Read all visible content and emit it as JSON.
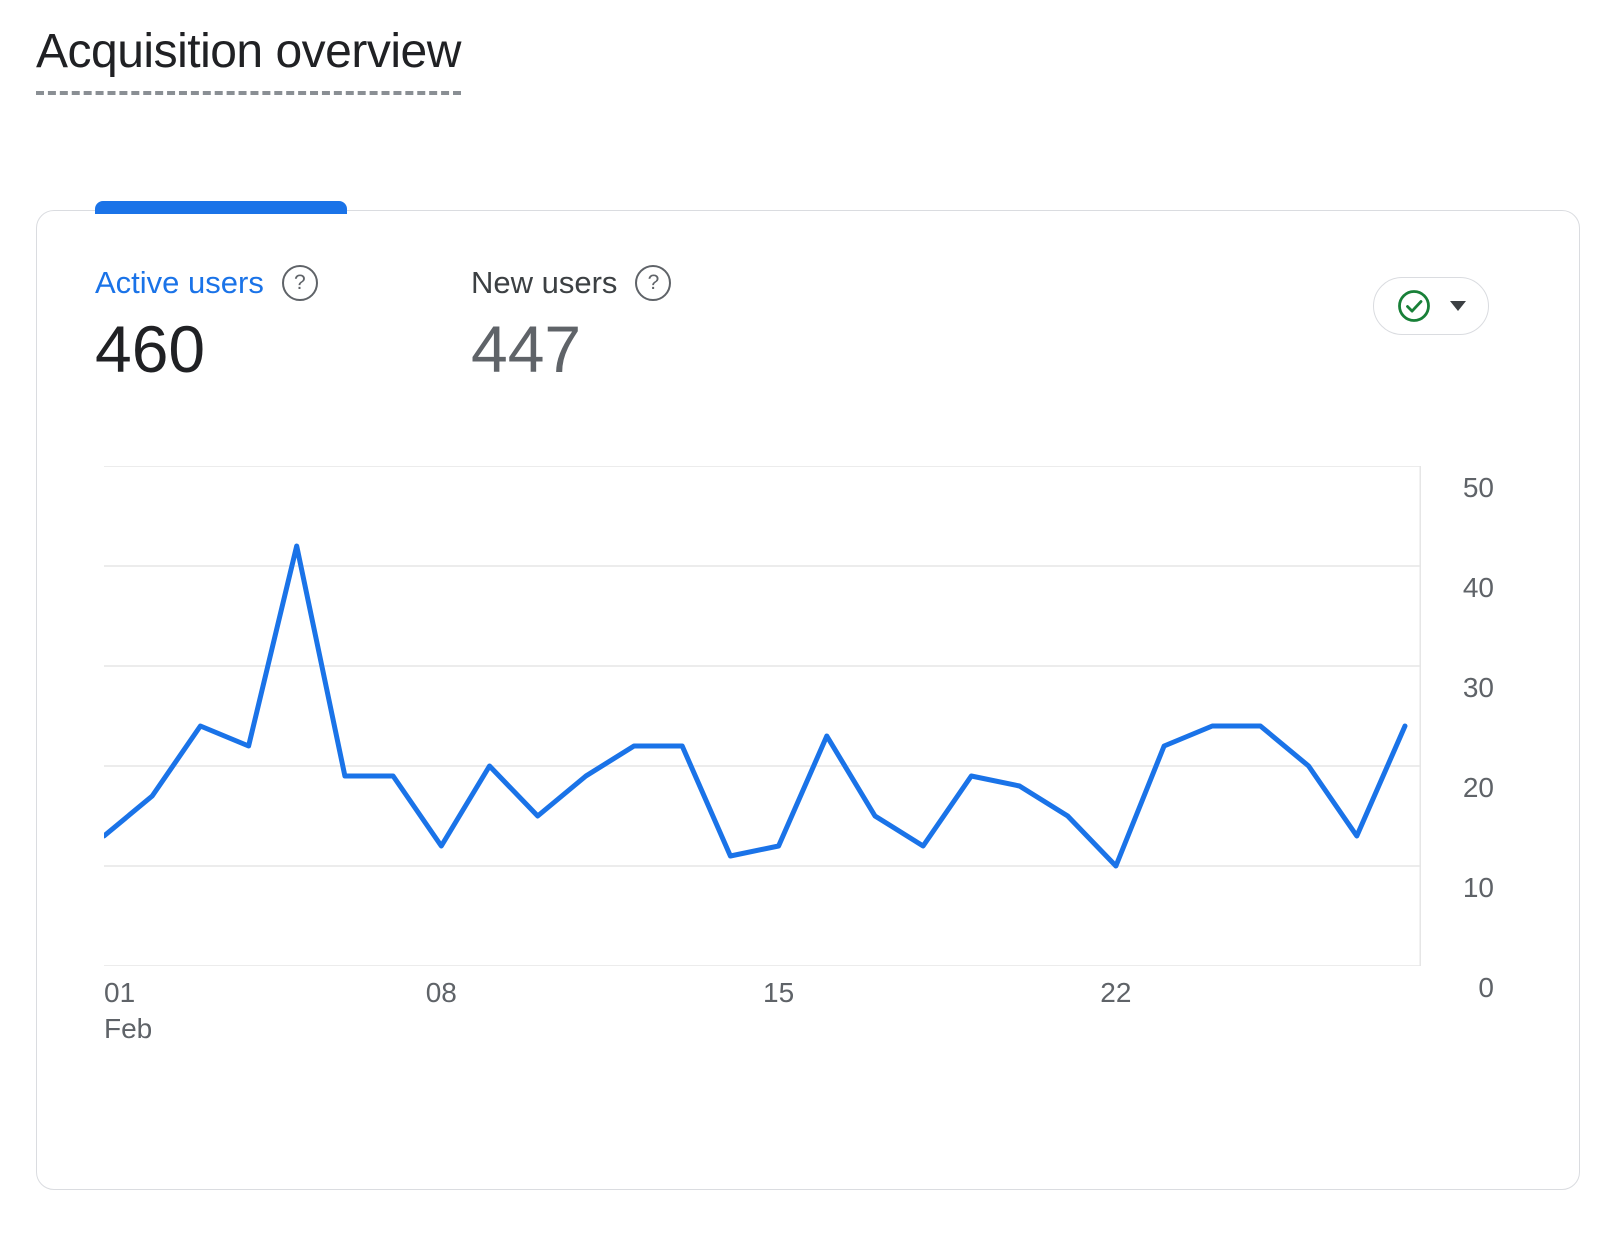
{
  "page": {
    "title": "Acquisition overview"
  },
  "card": {
    "metrics": [
      {
        "label": "Active users",
        "value": "460",
        "selected": true
      },
      {
        "label": "New users",
        "value": "447",
        "selected": false
      }
    ],
    "help_icon_glyph": "?",
    "quality_button": {
      "icon": "check-circle",
      "status_color": "#188038"
    }
  },
  "chart_data": {
    "type": "line",
    "x": [
      1,
      2,
      3,
      4,
      5,
      6,
      7,
      8,
      9,
      10,
      11,
      12,
      13,
      14,
      15,
      16,
      17,
      18,
      19,
      20,
      21,
      22,
      23,
      24,
      25,
      26,
      27,
      28
    ],
    "x_unit": "day of February",
    "series": [
      {
        "name": "Active users",
        "values": [
          13,
          17,
          24,
          22,
          42,
          19,
          19,
          12,
          20,
          15,
          19,
          22,
          22,
          11,
          12,
          23,
          15,
          12,
          19,
          18,
          15,
          10,
          22,
          24,
          24,
          20,
          13,
          24
        ]
      }
    ],
    "line_color": "#1a73e8",
    "ylim": [
      0,
      50
    ],
    "yticks": [
      0,
      10,
      20,
      30,
      40,
      50
    ],
    "xticks": [
      {
        "day": 1,
        "label": "01",
        "sub": "Feb"
      },
      {
        "day": 8,
        "label": "08",
        "sub": ""
      },
      {
        "day": 15,
        "label": "15",
        "sub": ""
      },
      {
        "day": 22,
        "label": "22",
        "sub": ""
      }
    ],
    "grid": "horizontal",
    "legend": "none",
    "y_axis_side": "right"
  },
  "colors": {
    "accent": "#1a73e8",
    "check_green": "#188038",
    "border": "#dadce0",
    "grid": "#e6e6e6",
    "text_primary": "#202124",
    "text_secondary": "#5f6368"
  }
}
